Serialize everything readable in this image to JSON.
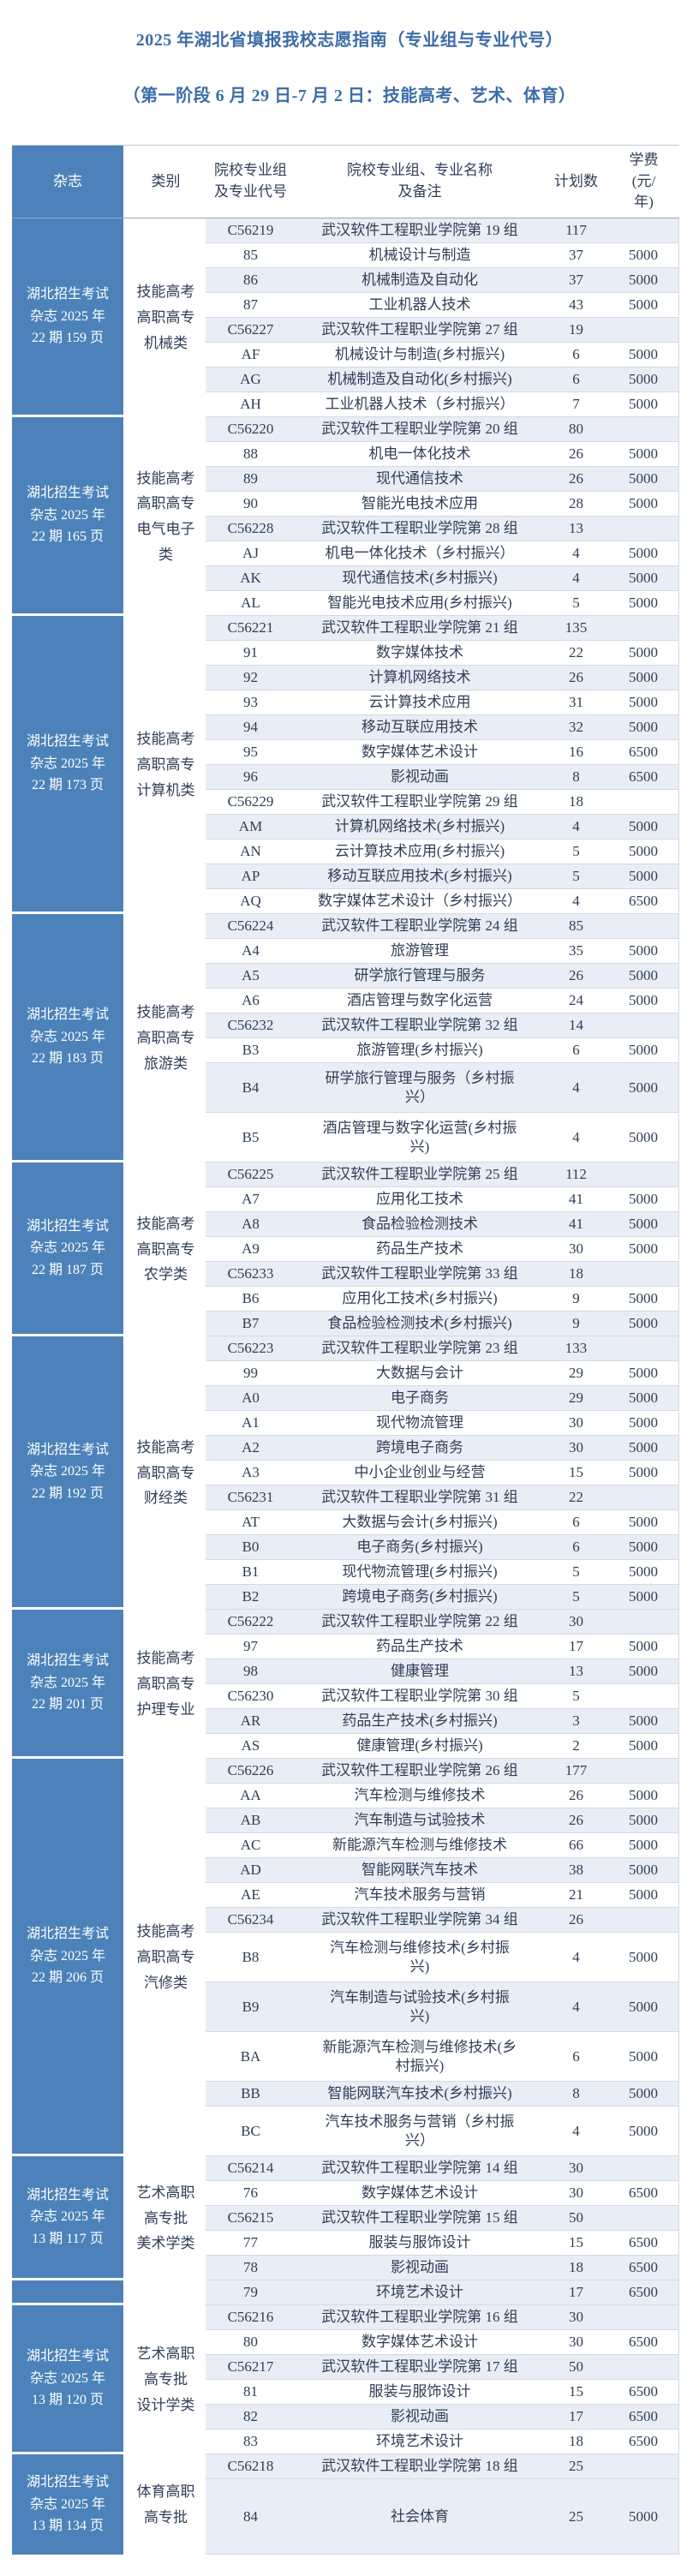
{
  "page": {
    "title": "2025 年湖北省填报我校志愿指南（专业组与专业代号）",
    "subtitle": "（第一阶段 6 月 29 日-7 月 2 日：技能高考、艺术、体育）"
  },
  "colors": {
    "accent_blue": "#4C82B9",
    "title_blue": "#3D6DA8",
    "body_text": "#2F3E56",
    "row_stripe": "#E9EDF5",
    "row_line": "#D3D9E4"
  },
  "table": {
    "headers": {
      "magazine": "杂志",
      "category": "类别",
      "code": "院校专业组\n及专业代号",
      "name": "院校专业组、专业名称\n及备注",
      "plan": "计划数",
      "fee": "学费\n(元/\n年)"
    },
    "sections": [
      {
        "magazine": "湖北招生考试杂志 2025 年 22 期 159 页",
        "category": "技能高考\n高职高专\n机械类",
        "rows": [
          {
            "code": "C56219",
            "name": "武汉软件工程职业学院第 19 组",
            "plan": "117",
            "fee": ""
          },
          {
            "code": "85",
            "name": "机械设计与制造",
            "plan": "37",
            "fee": "5000"
          },
          {
            "code": "86",
            "name": "机械制造及自动化",
            "plan": "37",
            "fee": "5000"
          },
          {
            "code": "87",
            "name": "工业机器人技术",
            "plan": "43",
            "fee": "5000"
          },
          {
            "code": "C56227",
            "name": "武汉软件工程职业学院第 27 组",
            "plan": "19",
            "fee": ""
          },
          {
            "code": "AF",
            "name": "机械设计与制造(乡村振兴)",
            "plan": "6",
            "fee": "5000"
          },
          {
            "code": "AG",
            "name": "机械制造及自动化(乡村振兴)",
            "plan": "6",
            "fee": "5000"
          },
          {
            "code": "AH",
            "name": "工业机器人技术（乡村振兴）",
            "plan": "7",
            "fee": "5000"
          }
        ]
      },
      {
        "magazine": "湖北招生考试杂志 2025 年 22 期 165 页",
        "category": "技能高考\n高职高专\n电气电子\n类",
        "rows": [
          {
            "code": "C56220",
            "name": "武汉软件工程职业学院第 20 组",
            "plan": "80",
            "fee": ""
          },
          {
            "code": "88",
            "name": "机电一体化技术",
            "plan": "26",
            "fee": "5000"
          },
          {
            "code": "89",
            "name": "现代通信技术",
            "plan": "26",
            "fee": "5000"
          },
          {
            "code": "90",
            "name": "智能光电技术应用",
            "plan": "28",
            "fee": "5000"
          },
          {
            "code": "C56228",
            "name": "武汉软件工程职业学院第 28 组",
            "plan": "13",
            "fee": ""
          },
          {
            "code": "AJ",
            "name": "机电一体化技术（乡村振兴）",
            "plan": "4",
            "fee": "5000"
          },
          {
            "code": "AK",
            "name": "现代通信技术(乡村振兴)",
            "plan": "4",
            "fee": "5000"
          },
          {
            "code": "AL",
            "name": "智能光电技术应用(乡村振兴)",
            "plan": "5",
            "fee": "5000"
          }
        ]
      },
      {
        "magazine": "湖北招生考试杂志 2025 年 22 期 173 页",
        "category": "技能高考\n高职高专\n计算机类",
        "rows": [
          {
            "code": "C56221",
            "name": "武汉软件工程职业学院第 21 组",
            "plan": "135",
            "fee": ""
          },
          {
            "code": "91",
            "name": "数字媒体技术",
            "plan": "22",
            "fee": "5000"
          },
          {
            "code": "92",
            "name": "计算机网络技术",
            "plan": "26",
            "fee": "5000"
          },
          {
            "code": "93",
            "name": "云计算技术应用",
            "plan": "31",
            "fee": "5000"
          },
          {
            "code": "94",
            "name": "移动互联应用技术",
            "plan": "32",
            "fee": "5000"
          },
          {
            "code": "95",
            "name": "数字媒体艺术设计",
            "plan": "16",
            "fee": "6500"
          },
          {
            "code": "96",
            "name": "影视动画",
            "plan": "8",
            "fee": "6500"
          },
          {
            "code": "C56229",
            "name": "武汉软件工程职业学院第 29 组",
            "plan": "18",
            "fee": ""
          },
          {
            "code": "AM",
            "name": "计算机网络技术(乡村振兴)",
            "plan": "4",
            "fee": "5000"
          },
          {
            "code": "AN",
            "name": "云计算技术应用(乡村振兴)",
            "plan": "5",
            "fee": "5000"
          },
          {
            "code": "AP",
            "name": "移动互联应用技术(乡村振兴)",
            "plan": "5",
            "fee": "5000"
          },
          {
            "code": "AQ",
            "name": "数字媒体艺术设计（乡村振兴）",
            "plan": "4",
            "fee": "6500"
          }
        ]
      },
      {
        "magazine": "湖北招生考试杂志 2025 年 22 期 183 页",
        "category": "技能高考\n高职高专\n旅游类",
        "rows": [
          {
            "code": "C56224",
            "name": "武汉软件工程职业学院第 24 组",
            "plan": "85",
            "fee": ""
          },
          {
            "code": "A4",
            "name": "旅游管理",
            "plan": "35",
            "fee": "5000"
          },
          {
            "code": "A5",
            "name": "研学旅行管理与服务",
            "plan": "26",
            "fee": "5000"
          },
          {
            "code": "A6",
            "name": "酒店管理与数字化运营",
            "plan": "24",
            "fee": "5000"
          },
          {
            "code": "C56232",
            "name": "武汉软件工程职业学院第 32 组",
            "plan": "14",
            "fee": ""
          },
          {
            "code": "B3",
            "name": "旅游管理(乡村振兴)",
            "plan": "6",
            "fee": "5000"
          },
          {
            "code": "B4",
            "name": "研学旅行管理与服务（乡村振\n兴）",
            "plan": "4",
            "fee": "5000",
            "size": "tall"
          },
          {
            "code": "B5",
            "name": "酒店管理与数字化运营(乡村振\n兴)",
            "plan": "4",
            "fee": "5000",
            "size": "tall"
          }
        ]
      },
      {
        "magazine": "湖北招生考试杂志 2025 年 22 期 187 页",
        "category": "技能高考\n高职高专\n农学类",
        "rows": [
          {
            "code": "C56225",
            "name": "武汉软件工程职业学院第 25 组",
            "plan": "112",
            "fee": ""
          },
          {
            "code": "A7",
            "name": "应用化工技术",
            "plan": "41",
            "fee": "5000"
          },
          {
            "code": "A8",
            "name": "食品检验检测技术",
            "plan": "41",
            "fee": "5000"
          },
          {
            "code": "A9",
            "name": "药品生产技术",
            "plan": "30",
            "fee": "5000"
          },
          {
            "code": "C56233",
            "name": "武汉软件工程职业学院第 33 组",
            "plan": "18",
            "fee": ""
          },
          {
            "code": "B6",
            "name": "应用化工技术(乡村振兴)",
            "plan": "9",
            "fee": "5000"
          },
          {
            "code": "B7",
            "name": "食品检验检测技术(乡村振兴)",
            "plan": "9",
            "fee": "5000"
          }
        ]
      },
      {
        "magazine": "湖北招生考试杂志 2025 年 22 期 192 页",
        "category": "技能高考\n高职高专\n财经类",
        "rows": [
          {
            "code": "C56223",
            "name": "武汉软件工程职业学院第 23 组",
            "plan": "133",
            "fee": ""
          },
          {
            "code": "99",
            "name": "大数据与会计",
            "plan": "29",
            "fee": "5000"
          },
          {
            "code": "A0",
            "name": "电子商务",
            "plan": "29",
            "fee": "5000"
          },
          {
            "code": "A1",
            "name": "现代物流管理",
            "plan": "30",
            "fee": "5000"
          },
          {
            "code": "A2",
            "name": "跨境电子商务",
            "plan": "30",
            "fee": "5000"
          },
          {
            "code": "A3",
            "name": "中小企业创业与经营",
            "plan": "15",
            "fee": "5000"
          },
          {
            "code": "C56231",
            "name": "武汉软件工程职业学院第 31 组",
            "plan": "22",
            "fee": ""
          },
          {
            "code": "AT",
            "name": "大数据与会计(乡村振兴)",
            "plan": "6",
            "fee": "5000"
          },
          {
            "code": "B0",
            "name": "电子商务(乡村振兴)",
            "plan": "6",
            "fee": "5000"
          },
          {
            "code": "B1",
            "name": "现代物流管理(乡村振兴)",
            "plan": "5",
            "fee": "5000"
          },
          {
            "code": "B2",
            "name": "跨境电子商务(乡村振兴)",
            "plan": "5",
            "fee": "5000"
          }
        ]
      },
      {
        "magazine": "湖北招生考试杂志 2025 年 22 期 201 页",
        "category": "技能高考\n高职高专\n护理专业",
        "rows": [
          {
            "code": "C56222",
            "name": "武汉软件工程职业学院第 22 组",
            "plan": "30",
            "fee": ""
          },
          {
            "code": "97",
            "name": "药品生产技术",
            "plan": "17",
            "fee": "5000"
          },
          {
            "code": "98",
            "name": "健康管理",
            "plan": "13",
            "fee": "5000"
          },
          {
            "code": "C56230",
            "name": "武汉软件工程职业学院第 30 组",
            "plan": "5",
            "fee": ""
          },
          {
            "code": "AR",
            "name": "药品生产技术(乡村振兴)",
            "plan": "3",
            "fee": "5000"
          },
          {
            "code": "AS",
            "name": "健康管理(乡村振兴)",
            "plan": "2",
            "fee": "5000"
          }
        ]
      },
      {
        "magazine": "湖北招生考试杂志 2025 年 22 期 206 页",
        "category": "技能高考\n高职高专\n汽修类",
        "rows": [
          {
            "code": "C56226",
            "name": "武汉软件工程职业学院第 26 组",
            "plan": "177",
            "fee": ""
          },
          {
            "code": "AA",
            "name": "汽车检测与维修技术",
            "plan": "26",
            "fee": "5000"
          },
          {
            "code": "AB",
            "name": "汽车制造与试验技术",
            "plan": "26",
            "fee": "5000"
          },
          {
            "code": "AC",
            "name": "新能源汽车检测与维修技术",
            "plan": "66",
            "fee": "5000"
          },
          {
            "code": "AD",
            "name": "智能网联汽车技术",
            "plan": "38",
            "fee": "5000"
          },
          {
            "code": "AE",
            "name": "汽车技术服务与营销",
            "plan": "21",
            "fee": "5000"
          },
          {
            "code": "C56234",
            "name": "武汉软件工程职业学院第 34 组",
            "plan": "26",
            "fee": ""
          },
          {
            "code": "B8",
            "name": "汽车检测与维修技术(乡村振\n兴)",
            "plan": "4",
            "fee": "5000",
            "size": "tall"
          },
          {
            "code": "B9",
            "name": "汽车制造与试验技术(乡村振\n兴)",
            "plan": "4",
            "fee": "5000",
            "size": "tall"
          },
          {
            "code": "BA",
            "name": "新能源汽车检测与维修技术(乡\n村振兴)",
            "plan": "6",
            "fee": "5000",
            "size": "tall"
          },
          {
            "code": "BB",
            "name": "智能网联汽车技术(乡村振兴)",
            "plan": "8",
            "fee": "5000"
          },
          {
            "code": "BC",
            "name": "汽车技术服务与营销（乡村振\n兴）",
            "plan": "4",
            "fee": "5000",
            "size": "tall"
          }
        ]
      },
      {
        "magazine": "湖北招生考试杂志 2025 年 13 期 117 页",
        "category": "艺术高职\n高专批\n美术学类",
        "rows": [
          {
            "code": "C56214",
            "name": "武汉软件工程职业学院第 14 组",
            "plan": "30",
            "fee": ""
          },
          {
            "code": "76",
            "name": "数字媒体艺术设计",
            "plan": "30",
            "fee": "6500"
          },
          {
            "code": "C56215",
            "name": "武汉软件工程职业学院第 15 组",
            "plan": "50",
            "fee": ""
          },
          {
            "code": "77",
            "name": "服装与服饰设计",
            "plan": "15",
            "fee": "6500"
          },
          {
            "code": "78",
            "name": "影视动画",
            "plan": "18",
            "fee": "6500"
          }
        ]
      },
      {
        "magazine": "",
        "category": "",
        "rows": [
          {
            "code": "79",
            "name": "环境艺术设计",
            "plan": "17",
            "fee": "6500"
          }
        ]
      },
      {
        "magazine": "湖北招生考试杂志 2025 年 13 期 120 页",
        "category": "艺术高职\n高专批\n设计学类",
        "rows": [
          {
            "code": "C56216",
            "name": "武汉软件工程职业学院第 16 组",
            "plan": "30",
            "fee": ""
          },
          {
            "code": "80",
            "name": "数字媒体艺术设计",
            "plan": "30",
            "fee": "6500"
          },
          {
            "code": "C56217",
            "name": "武汉软件工程职业学院第 17 组",
            "plan": "50",
            "fee": ""
          },
          {
            "code": "81",
            "name": "服装与服饰设计",
            "plan": "15",
            "fee": "6500"
          },
          {
            "code": "82",
            "name": "影视动画",
            "plan": "17",
            "fee": "6500"
          },
          {
            "code": "83",
            "name": "环境艺术设计",
            "plan": "18",
            "fee": "6500"
          }
        ]
      },
      {
        "magazine": "湖北招生考试杂志 2025 年 13 期 134 页",
        "category": "体育高职\n高专批",
        "rows": [
          {
            "code": "C56218",
            "name": "武汉软件工程职业学院第 18 组",
            "plan": "25",
            "fee": ""
          },
          {
            "code": "84",
            "name": "社会体育",
            "plan": "25",
            "fee": "5000",
            "size": "big"
          }
        ]
      }
    ]
  }
}
